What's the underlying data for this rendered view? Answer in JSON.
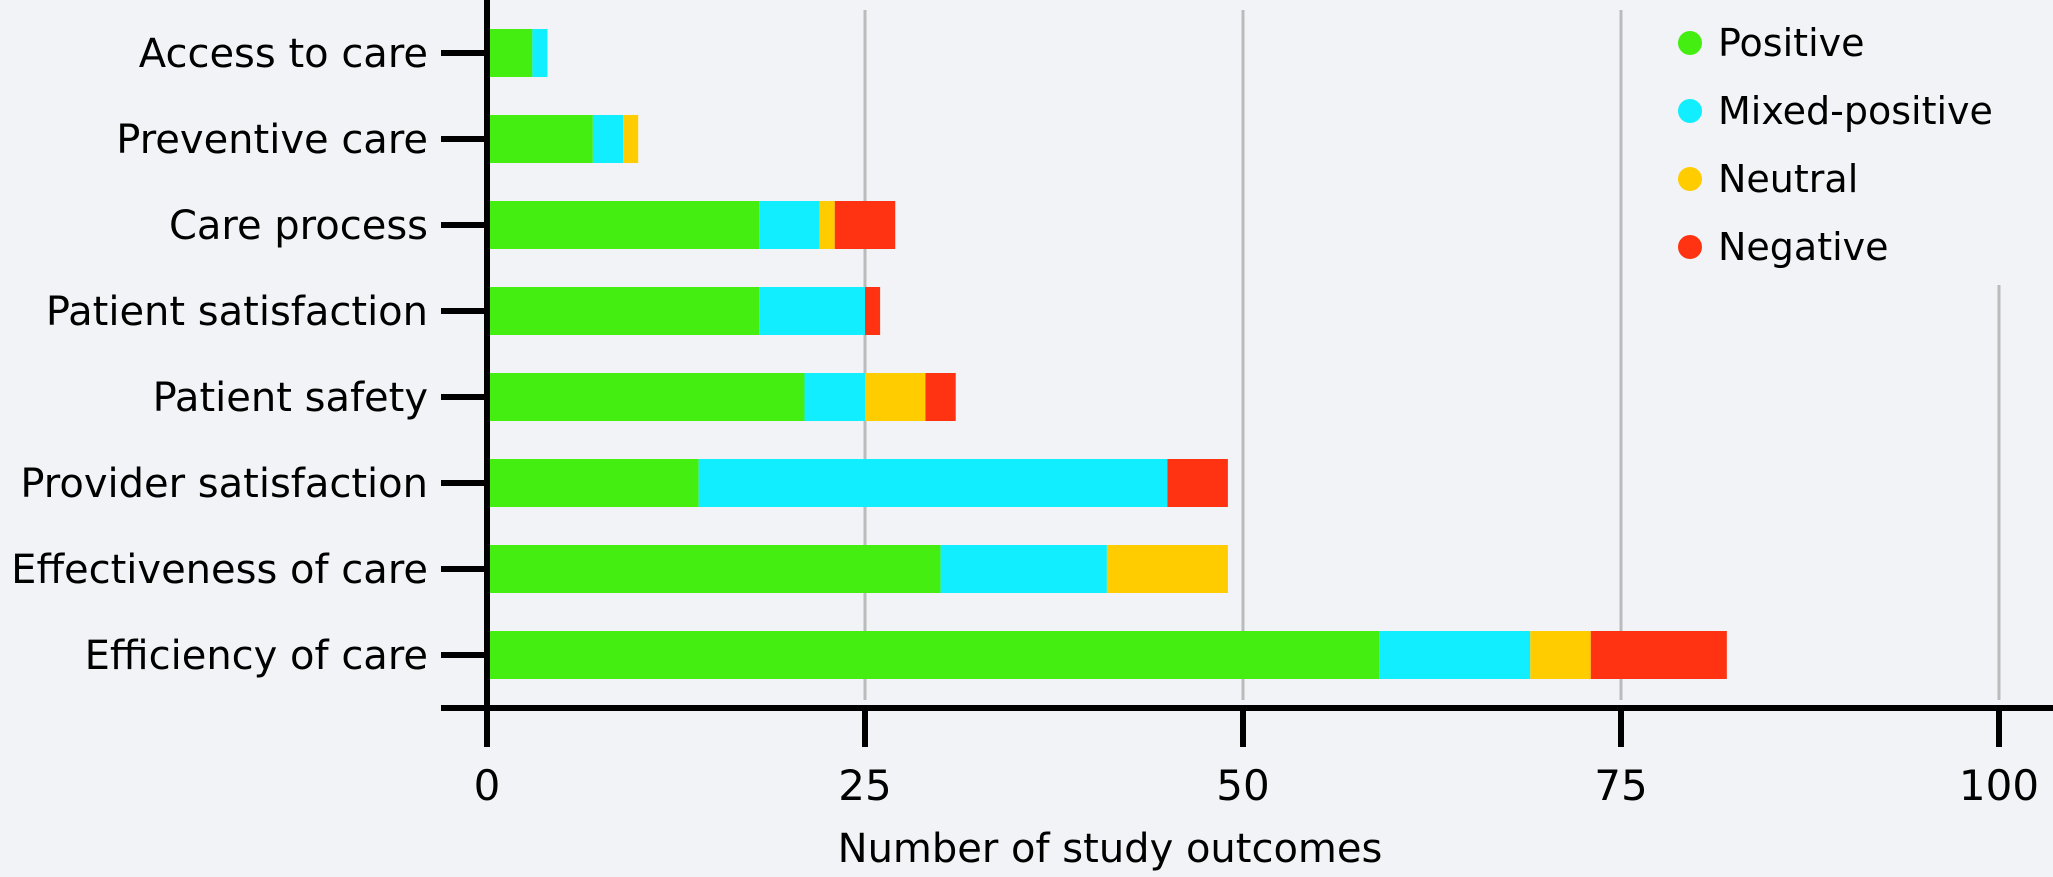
{
  "chart_data": {
    "type": "bar",
    "orientation": "horizontal",
    "stacked": true,
    "title": "",
    "xlabel": "Number of study outcomes",
    "ylabel": "",
    "xlim": [
      0,
      100
    ],
    "xticks": [
      "0",
      "25",
      "50",
      "75",
      "100"
    ],
    "xtick_values": [
      0,
      25,
      50,
      75,
      100
    ],
    "grid": "vertical",
    "legend_position": "top-right",
    "categories": [
      "Access to care",
      "Preventive care",
      "Care process",
      "Patient satisfaction",
      "Patient safety",
      "Provider satisfaction",
      "Effectiveness of care",
      "Efficiency of care"
    ],
    "series": [
      {
        "name": "Positive",
        "color": "#44ee11",
        "values": [
          3,
          7,
          18,
          18,
          21,
          14,
          30,
          59
        ]
      },
      {
        "name": "Mixed-positive",
        "color": "#11eeff",
        "values": [
          1,
          2,
          4,
          7,
          4,
          31,
          11,
          10
        ]
      },
      {
        "name": "Neutral",
        "color": "#ffcc00",
        "values": [
          0,
          1,
          1,
          0,
          4,
          0,
          8,
          4
        ]
      },
      {
        "name": "Negative",
        "color": "#ff3311",
        "values": [
          0,
          0,
          4,
          1,
          2,
          4,
          0,
          9
        ]
      }
    ]
  }
}
